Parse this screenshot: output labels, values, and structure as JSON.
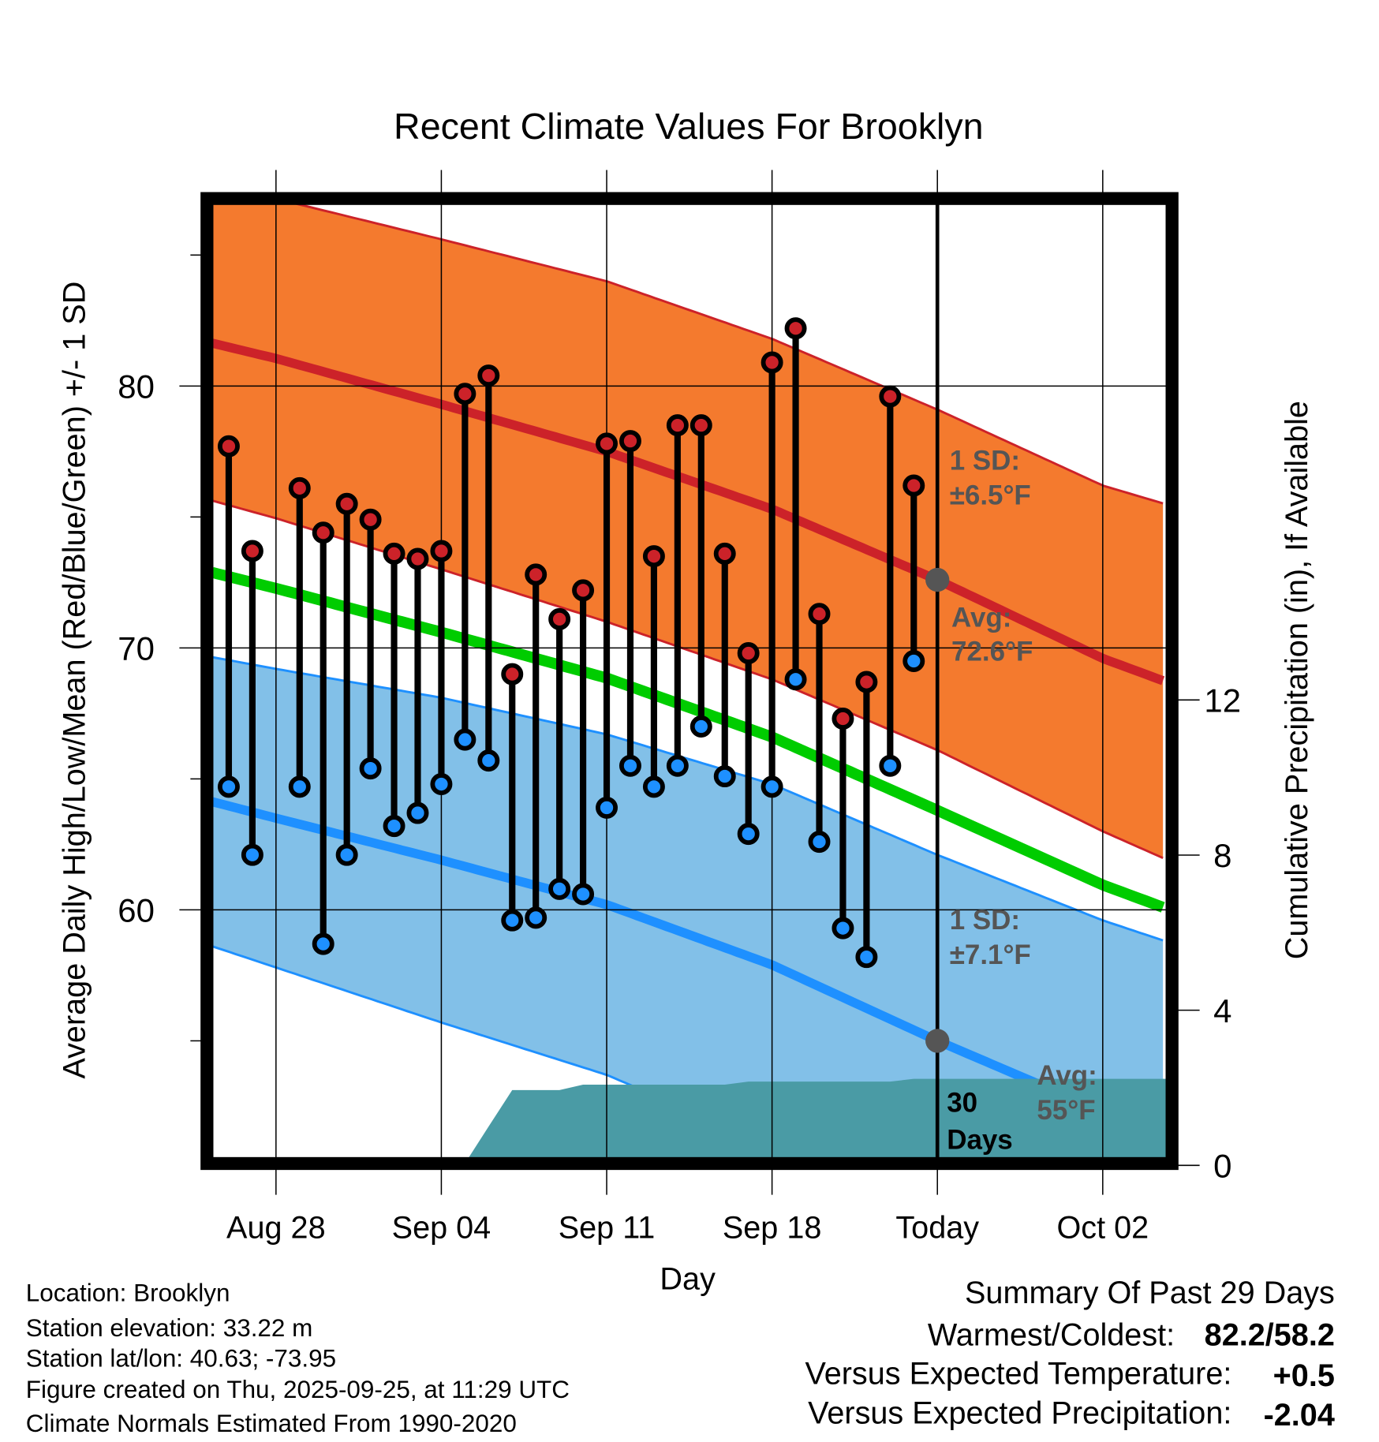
{
  "chart_data": {
    "type": "line",
    "title": "Recent Climate Values For Brooklyn",
    "xlabel": "Day",
    "ylabel": "Average Daily High/Low/Mean (Red/Blue/Green) +/- 1 SD",
    "y2label": "Cumulative Precipitation (in), If Available",
    "x_start": "2025-08-25",
    "x_ticks": [
      {
        "date": "2025-08-28",
        "label": "Aug 28"
      },
      {
        "date": "2025-09-04",
        "label": "Sep 04"
      },
      {
        "date": "2025-09-11",
        "label": "Sep 11"
      },
      {
        "date": "2025-09-18",
        "label": "Sep 18"
      },
      {
        "date": "2025-09-25",
        "label": "Today"
      },
      {
        "date": "2025-10-02",
        "label": "Oct 02"
      }
    ],
    "today": "2025-09-25",
    "ylim": [
      50.5,
      87
    ],
    "y_ticks": [
      60,
      70,
      80
    ],
    "y_minor_ticks": [
      55,
      65,
      75,
      85
    ],
    "y2lim": [
      0,
      21.6
    ],
    "y2_ticks": [
      0,
      4,
      8,
      12
    ],
    "grid": true,
    "observed": [
      {
        "date": "2025-08-26",
        "high": 77.7,
        "low": 64.7
      },
      {
        "date": "2025-08-27",
        "high": 73.7,
        "low": 62.1
      },
      {
        "date": "2025-08-29",
        "high": 76.1,
        "low": 64.7
      },
      {
        "date": "2025-08-30",
        "high": 74.4,
        "low": 58.7
      },
      {
        "date": "2025-08-31",
        "high": 75.5,
        "low": 62.1
      },
      {
        "date": "2025-09-01",
        "high": 74.9,
        "low": 65.4
      },
      {
        "date": "2025-09-02",
        "high": 73.6,
        "low": 63.2
      },
      {
        "date": "2025-09-03",
        "high": 73.4,
        "low": 63.7
      },
      {
        "date": "2025-09-04",
        "high": 73.7,
        "low": 64.8
      },
      {
        "date": "2025-09-05",
        "high": 79.7,
        "low": 66.5
      },
      {
        "date": "2025-09-06",
        "high": 80.4,
        "low": 65.7
      },
      {
        "date": "2025-09-07",
        "high": 69.0,
        "low": 59.6
      },
      {
        "date": "2025-09-08",
        "high": 72.8,
        "low": 59.7
      },
      {
        "date": "2025-09-09",
        "high": 71.1,
        "low": 60.8
      },
      {
        "date": "2025-09-10",
        "high": 72.2,
        "low": 60.6
      },
      {
        "date": "2025-09-11",
        "high": 77.8,
        "low": 63.9
      },
      {
        "date": "2025-09-12",
        "high": 77.9,
        "low": 65.5
      },
      {
        "date": "2025-09-13",
        "high": 73.5,
        "low": 64.7
      },
      {
        "date": "2025-09-14",
        "high": 78.5,
        "low": 65.5
      },
      {
        "date": "2025-09-15",
        "high": 78.5,
        "low": 67.0
      },
      {
        "date": "2025-09-16",
        "high": 73.6,
        "low": 65.1
      },
      {
        "date": "2025-09-17",
        "high": 69.8,
        "low": 62.9
      },
      {
        "date": "2025-09-18",
        "high": 80.9,
        "low": 64.7
      },
      {
        "date": "2025-09-19",
        "high": 82.2,
        "low": 68.8
      },
      {
        "date": "2025-09-20",
        "high": 71.3,
        "low": 62.6
      },
      {
        "date": "2025-09-21",
        "high": 67.3,
        "low": 59.3
      },
      {
        "date": "2025-09-22",
        "high": 68.7,
        "low": 58.2
      },
      {
        "date": "2025-09-23",
        "high": 79.6,
        "low": 65.5
      },
      {
        "date": "2025-09-24",
        "high": 76.2,
        "low": 69.5
      }
    ],
    "normals": {
      "dates": [
        "2025-08-25",
        "2025-08-28",
        "2025-09-04",
        "2025-09-11",
        "2025-09-18",
        "2025-09-25",
        "2025-10-02",
        "2025-10-05"
      ],
      "high": [
        81.7,
        81.05,
        79.3,
        77.5,
        75.3,
        72.6,
        69.6,
        68.6
      ],
      "high_sd": [
        6.0,
        6.1,
        6.3,
        6.5,
        6.5,
        6.5,
        6.6,
        6.8
      ],
      "low": [
        64.2,
        63.5,
        61.9,
        60.2,
        57.9,
        55.0,
        52.3,
        51.3
      ],
      "low_sd": [
        5.5,
        5.7,
        6.2,
        6.5,
        6.9,
        7.1,
        7.3,
        7.4
      ]
    },
    "precip_cumulative": {
      "dates": [
        "2025-08-25",
        "2025-09-05",
        "2025-09-06",
        "2025-09-07",
        "2025-09-09",
        "2025-09-10",
        "2025-09-16",
        "2025-09-17",
        "2025-09-23",
        "2025-09-24",
        "2025-10-05"
      ],
      "values": [
        0,
        0.05,
        1.0,
        1.94,
        1.94,
        2.08,
        2.08,
        2.16,
        2.16,
        2.23,
        2.23
      ]
    },
    "annotations": {
      "high_sd_label": "1 SD:",
      "high_sd_value": "±6.5°F",
      "high_avg_label": "Avg:",
      "high_avg_value": "72.6°F",
      "high_avg": 72.6,
      "low_sd_label": "1 SD:",
      "low_sd_value": "±7.1°F",
      "low_avg_label": "Avg:",
      "low_avg_value": "55°F",
      "low_avg": 55.0,
      "precip_window_1": "30",
      "precip_window_2": "Days"
    },
    "colors": {
      "high_band": "#F47A2E",
      "high_line": "#CC2229",
      "low_band": "#82C0E8",
      "low_line": "#1E90FF",
      "mean_line": "#00CC00",
      "precip": "#4A9BA5",
      "annotation": "#555555"
    }
  },
  "footer": {
    "location": "Location: Brooklyn",
    "elevation": "Station elevation: 33.22 m",
    "latlon": "Station lat/lon: 40.63; -73.95",
    "created": "Figure created on Thu, 2025-09-25, at 11:29 UTC",
    "normals": "Climate Normals Estimated From 1990-2020"
  },
  "summary": {
    "title": "Summary Of Past 29 Days",
    "warmest_coldest_label": "Warmest/Coldest:",
    "warmest_coldest_value": "82.2/58.2",
    "temp_label": "Versus Expected Temperature:",
    "temp_value": "+0.5",
    "precip_label": "Versus Expected Precipitation:",
    "precip_value": "-2.04",
    "temp_color": "#D42A2A",
    "precip_color": "#A0522D"
  }
}
